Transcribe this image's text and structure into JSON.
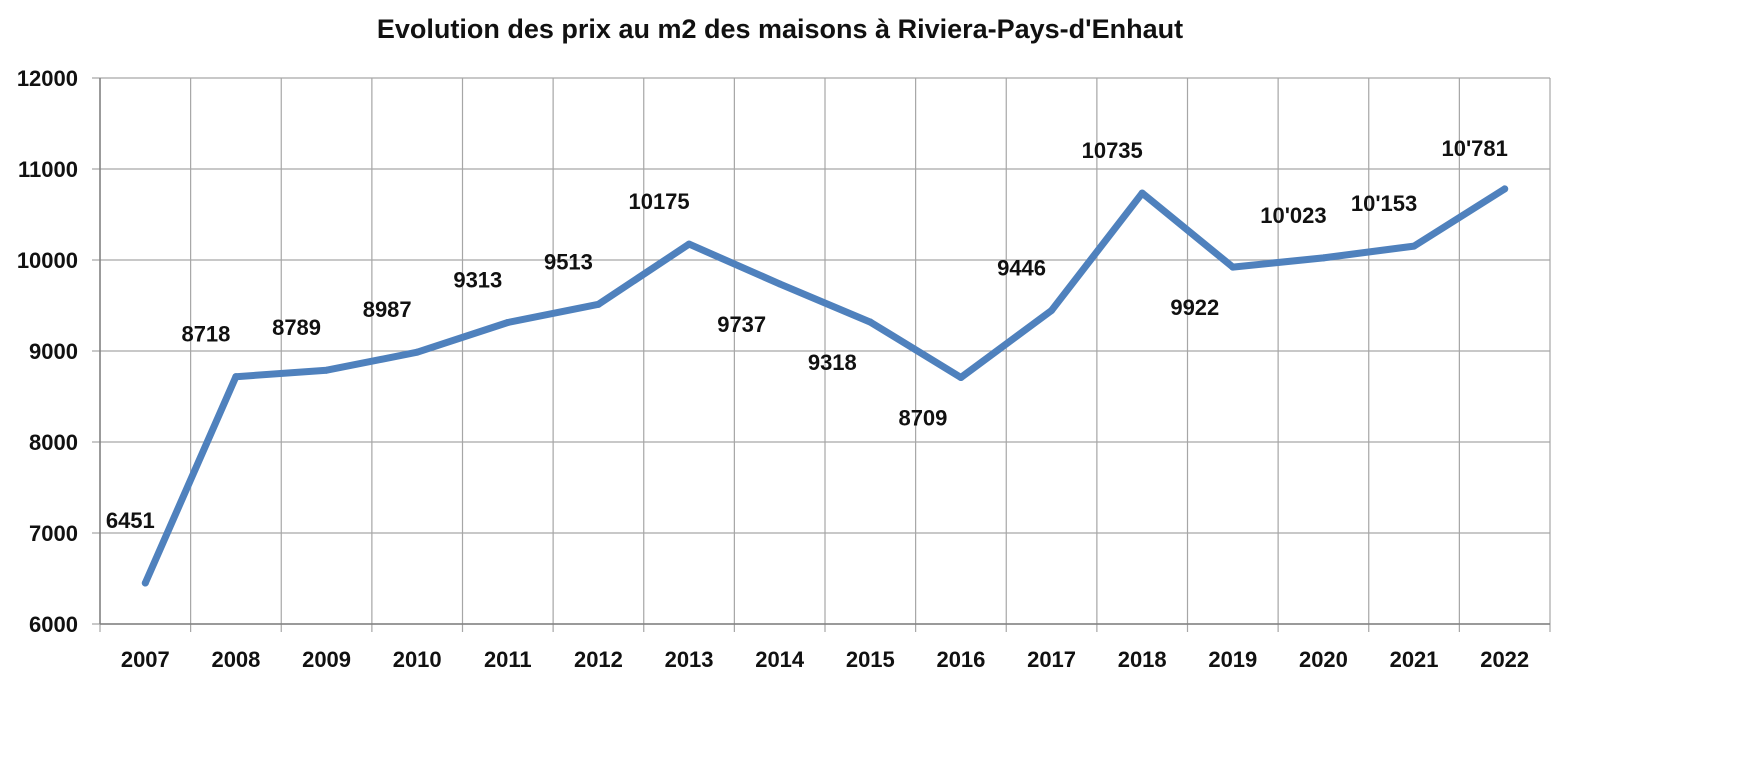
{
  "chart_data": {
    "type": "line",
    "title": "Evolution des prix au m2 des maisons à Riviera-Pays-d'Enhaut",
    "xlabel": "",
    "ylabel": "",
    "categories": [
      "2007",
      "2008",
      "2009",
      "2010",
      "2011",
      "2012",
      "2013",
      "2014",
      "2015",
      "2016",
      "2017",
      "2018",
      "2019",
      "2020",
      "2021",
      "2022"
    ],
    "values": [
      6451,
      8718,
      8789,
      8987,
      9313,
      9513,
      10175,
      9737,
      9318,
      8709,
      9446,
      10735,
      9922,
      10023,
      10153,
      10781
    ],
    "data_labels": [
      "6451",
      "8718",
      "8789",
      "8987",
      "9313",
      "9513",
      "10175",
      "9737",
      "9318",
      "8709",
      "9446",
      "10735",
      "9922",
      "10'023",
      "10'153",
      "10'781"
    ],
    "ylim": [
      6000,
      12000
    ],
    "yticks": [
      "6000",
      "7000",
      "8000",
      "9000",
      "10000",
      "11000",
      "12000"
    ],
    "grid": true,
    "legend": "none",
    "line_color": "#4F81BD",
    "grid_color": "#A6A6A6"
  }
}
